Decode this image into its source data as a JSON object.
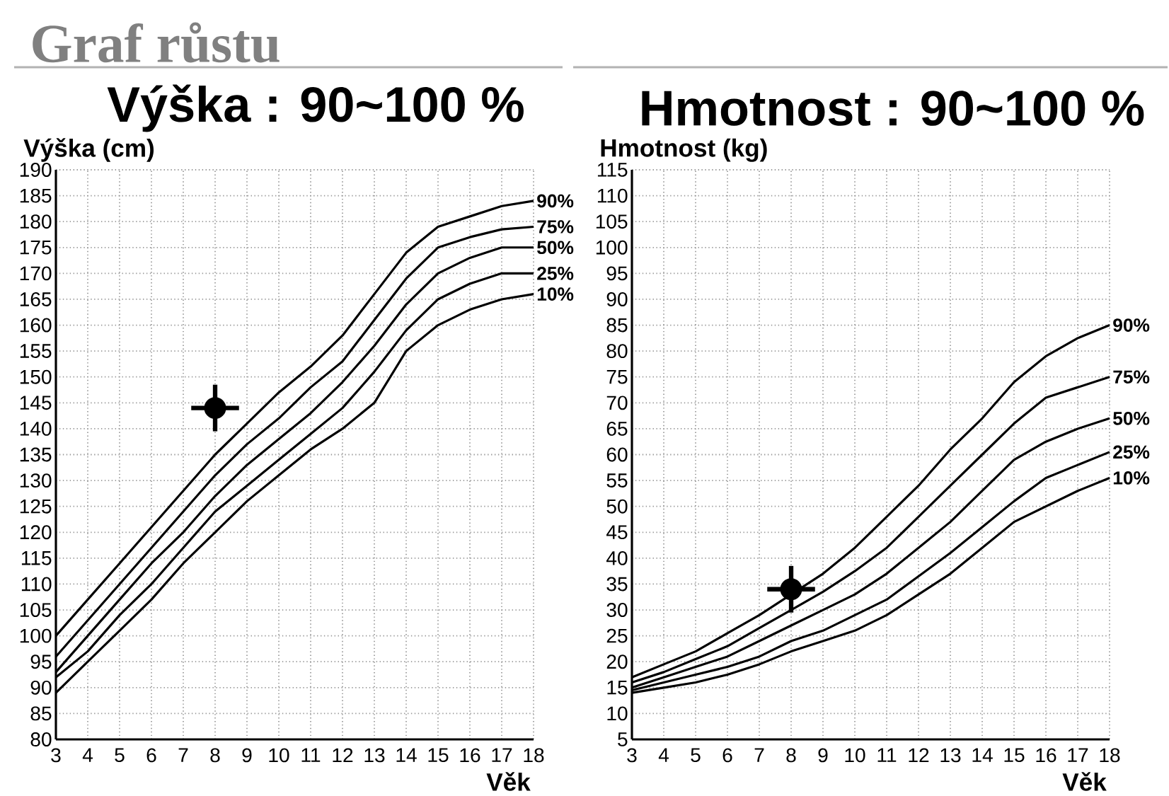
{
  "chart_data": [
    {
      "type": "line",
      "title": "Graf růstu",
      "subtitle": "Výška : 90~100 %",
      "xlabel": "Věk",
      "ylabel": "Výška (cm)",
      "x": [
        3,
        4,
        5,
        6,
        7,
        8,
        9,
        10,
        11,
        12,
        13,
        14,
        15,
        16,
        17,
        18
      ],
      "xlim": [
        3,
        18
      ],
      "xticks": [
        3,
        4,
        5,
        6,
        7,
        8,
        9,
        10,
        11,
        12,
        13,
        14,
        15,
        16,
        17,
        18
      ],
      "ylim": [
        80,
        190
      ],
      "yticks": [
        80,
        85,
        90,
        95,
        100,
        105,
        110,
        115,
        120,
        125,
        130,
        135,
        140,
        145,
        150,
        155,
        160,
        165,
        170,
        175,
        180,
        185,
        190
      ],
      "grid": true,
      "line_style": "solid",
      "series": [
        {
          "name": "90%",
          "color": "#000000",
          "values": [
            100,
            107,
            114,
            121,
            128,
            135,
            141,
            147,
            152,
            158,
            166,
            174,
            179,
            181,
            183,
            184
          ]
        },
        {
          "name": "75%",
          "color": "#000000",
          "values": [
            96,
            103,
            110,
            117,
            124,
            131,
            137,
            142,
            148,
            153,
            161,
            169,
            175,
            177,
            178.5,
            179
          ]
        },
        {
          "name": "50%",
          "color": "#000000",
          "values": [
            93,
            100,
            107,
            114,
            120,
            127,
            133,
            138,
            143,
            149,
            156,
            164,
            170,
            173,
            175,
            175
          ]
        },
        {
          "name": "25%",
          "color": "#000000",
          "values": [
            92,
            97,
            104,
            110,
            117,
            124,
            129,
            134,
            139,
            144,
            151,
            159,
            165,
            168,
            170,
            170
          ]
        },
        {
          "name": "10%",
          "color": "#000000",
          "values": [
            89,
            95,
            101,
            107,
            114,
            120,
            126,
            131,
            136,
            140,
            145,
            155,
            160,
            163,
            165,
            166
          ]
        },
        {
          "type": "scatter",
          "color": "#000000",
          "x": [
            8
          ],
          "values": [
            144
          ],
          "errors": [
            4.5
          ],
          "xerrors": [
            0.75
          ]
        }
      ]
    },
    {
      "type": "line",
      "subtitle": "Hmotnost : 90~100 %",
      "xlabel": "Věk",
      "ylabel": "Hmotnost (kg)",
      "x": [
        3,
        4,
        5,
        6,
        7,
        8,
        9,
        10,
        11,
        12,
        13,
        14,
        15,
        16,
        17,
        18
      ],
      "xlim": [
        3,
        18
      ],
      "xticks": [
        3,
        4,
        5,
        6,
        7,
        8,
        9,
        10,
        11,
        12,
        13,
        14,
        15,
        16,
        17,
        18
      ],
      "ylim": [
        5,
        115
      ],
      "yticks": [
        5,
        10,
        15,
        20,
        25,
        30,
        35,
        40,
        45,
        50,
        55,
        60,
        65,
        70,
        75,
        80,
        85,
        90,
        95,
        100,
        105,
        110,
        115
      ],
      "grid": true,
      "line_style": "solid",
      "series": [
        {
          "name": "90%",
          "color": "#000000",
          "values": [
            17,
            19.5,
            22,
            25.5,
            29,
            33,
            37,
            42,
            48,
            54,
            61,
            67,
            74,
            79,
            82.5,
            85
          ]
        },
        {
          "name": "75%",
          "color": "#000000",
          "values": [
            16,
            18,
            20.5,
            23,
            26.5,
            30,
            33.5,
            37.5,
            42,
            48,
            54,
            60,
            66,
            71,
            73,
            75
          ]
        },
        {
          "name": "50%",
          "color": "#000000",
          "values": [
            15,
            17,
            19,
            21,
            24,
            27,
            30,
            33,
            37,
            42,
            47,
            53,
            59,
            62.5,
            65,
            67
          ]
        },
        {
          "name": "25%",
          "color": "#000000",
          "values": [
            14.5,
            16,
            17.5,
            19,
            21,
            24,
            26,
            29,
            32,
            36.5,
            41,
            46,
            51,
            55.5,
            58,
            60.5
          ]
        },
        {
          "name": "10%",
          "color": "#000000",
          "values": [
            14,
            15,
            16,
            17.5,
            19.5,
            22,
            24,
            26,
            29,
            33,
            37,
            42,
            47,
            50,
            53,
            55.5
          ]
        },
        {
          "type": "scatter",
          "color": "#000000",
          "x": [
            8
          ],
          "values": [
            34
          ],
          "errors": [
            4.5
          ],
          "xerrors": [
            0.75
          ]
        }
      ]
    }
  ]
}
